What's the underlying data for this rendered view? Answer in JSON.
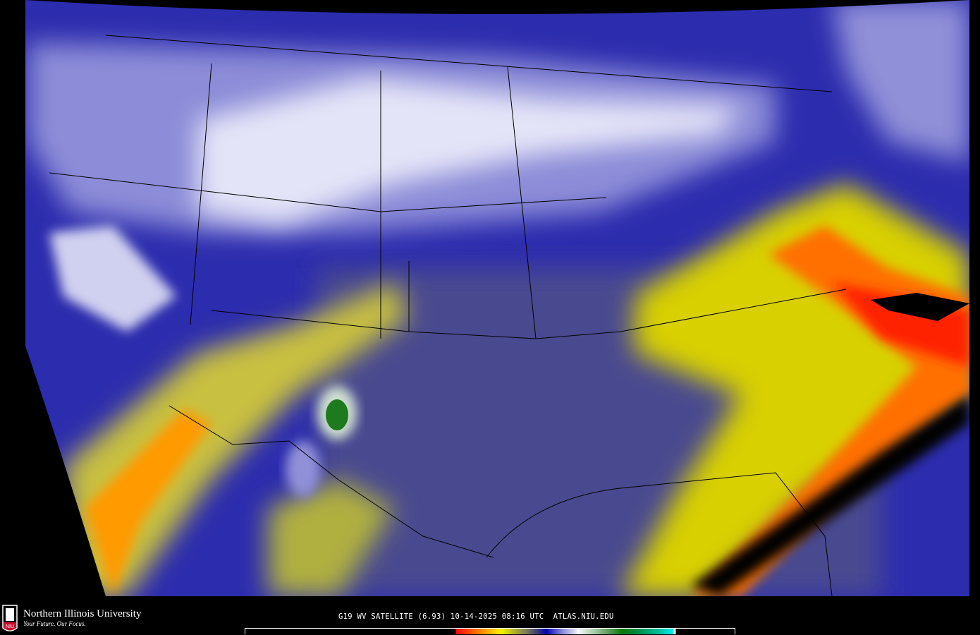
{
  "product": {
    "caption": "G19 WV SATELLITE (6.93) 10-14-2025 08:16 UTC  ATLAS.NIU.EDU"
  },
  "branding": {
    "university": "Northern Illinois University",
    "tagline": "Your Future. Our Focus.",
    "shield_text": "NIU"
  },
  "colorbar": {
    "colors": [
      "#000000",
      "#ff0000",
      "#ff9a00",
      "#ffe000",
      "#b0b030",
      "#404070",
      "#0000a8",
      "#9090d8",
      "#f8f8f8",
      "#60a060",
      "#087808",
      "#00b890",
      "#00f0f0"
    ]
  },
  "map": {
    "region": "CONUS",
    "palette": {
      "dry": "#ff3000",
      "moderate": "#f0e000",
      "neutral": "#404088",
      "moist": "#2a2ab0",
      "cold": "#d8d8f4"
    }
  }
}
